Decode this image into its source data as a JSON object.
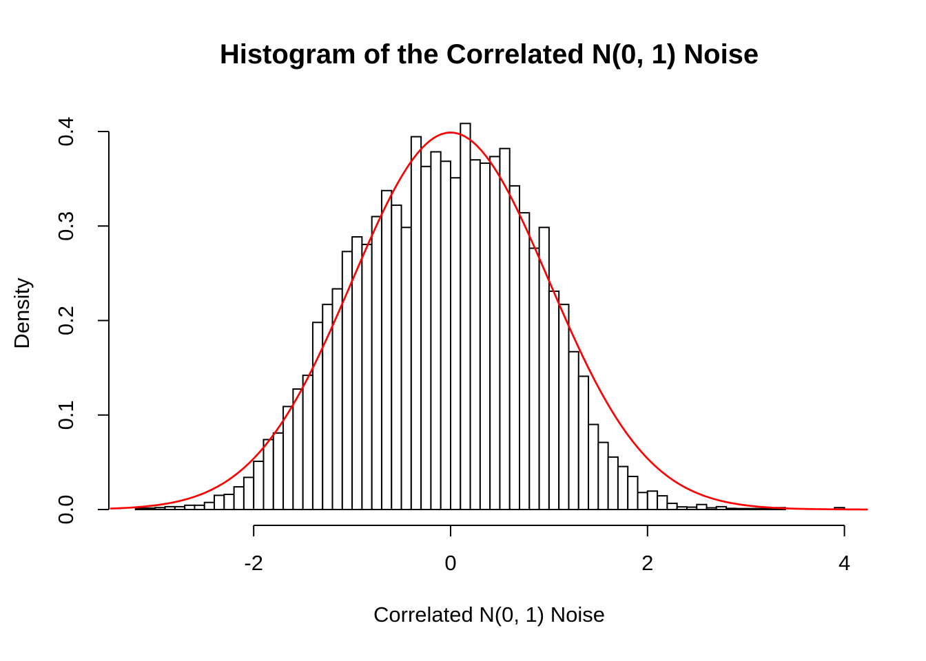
{
  "figure": {
    "title": "Histogram of the Correlated N(0, 1) Noise",
    "background_color": "#FFFFFF",
    "text_color": "#000000"
  },
  "chart_data": {
    "type": "bar",
    "subtype": "histogram",
    "title": "Histogram of the Correlated N(0, 1) Noise",
    "xlabel": "Correlated N(0, 1) Noise",
    "ylabel": "Density",
    "x_ticks": [
      -2,
      0,
      2,
      4
    ],
    "x_tick_labels": [
      "-2",
      "0",
      "2",
      "4"
    ],
    "y_ticks": [
      0.0,
      0.1,
      0.2,
      0.3,
      0.4
    ],
    "y_tick_labels": [
      "0.0",
      "0.1",
      "0.2",
      "0.3",
      "0.4"
    ],
    "xlim": [
      -3.45,
      4.35
    ],
    "ylim": [
      0,
      0.41
    ],
    "grid": false,
    "legend": "none",
    "bin_start": -3.2,
    "bin_width": 0.1,
    "bar_fill": "#FFFFFF",
    "bar_stroke": "#000000",
    "densities": [
      0.0015,
      0.0015,
      0.002,
      0.003,
      0.003,
      0.0045,
      0.0045,
      0.0075,
      0.015,
      0.016,
      0.024,
      0.034,
      0.051,
      0.074,
      0.081,
      0.109,
      0.1275,
      0.142,
      0.198,
      0.217,
      0.2335,
      0.273,
      0.2885,
      0.2805,
      0.31,
      0.3375,
      0.322,
      0.2985,
      0.3945,
      0.363,
      0.3785,
      0.3685,
      0.351,
      0.4085,
      0.37,
      0.3665,
      0.3735,
      0.382,
      0.3425,
      0.314,
      0.2765,
      0.2985,
      0.231,
      0.217,
      0.167,
      0.141,
      0.09,
      0.071,
      0.0555,
      0.0455,
      0.035,
      0.018,
      0.0195,
      0.0145,
      0.0065,
      0.0028,
      0.0025,
      0.0053,
      0.0018,
      0.003,
      0.0012,
      0.001,
      0.001,
      0.001,
      0.001,
      0.002,
      0,
      0,
      0,
      0,
      0,
      0.002
    ],
    "overlay_curve": {
      "name": "normal_pdf",
      "mean": 0,
      "sd": 1,
      "peak_density": 0.3989,
      "color": "#FF0000",
      "x_min": -3.45,
      "x_max": 4.26
    }
  }
}
